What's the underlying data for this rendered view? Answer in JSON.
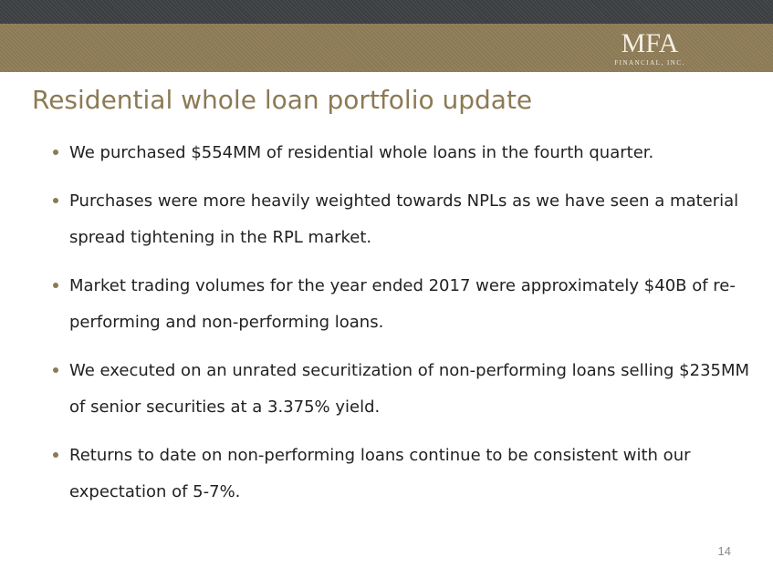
{
  "header": {
    "logo": {
      "mark": "MFA",
      "subtitle": "FINANCIAL, INC."
    }
  },
  "slide": {
    "title": "Residential whole loan portfolio update",
    "bullets": [
      "We purchased $554MM of residential whole loans in the fourth quarter.",
      "Purchases were more heavily weighted towards NPLs as we have seen a material spread tightening in the RPL market.",
      "Market trading volumes for the year ended 2017 were approximately $40B of re-performing and non-performing loans.",
      "We executed on an unrated securitization of non-performing loans selling $235MM of senior securities at a 3.375% yield.",
      "Returns to date on non-performing loans continue to be consistent with our expectation of 5-7%."
    ],
    "page_number": "14"
  },
  "colors": {
    "accent_gold": "#8c7a55",
    "top_band": "#3c3f42",
    "body_text": "#222222"
  }
}
